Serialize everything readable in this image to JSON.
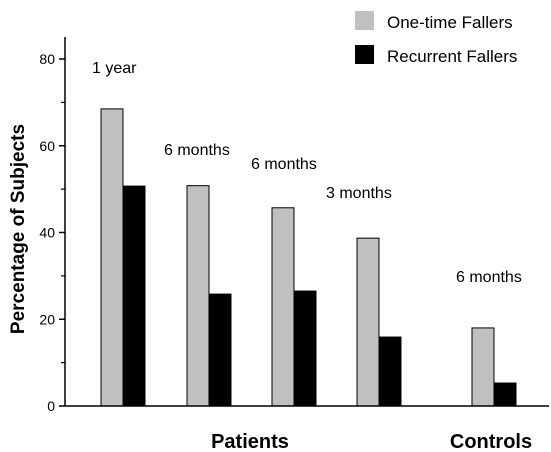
{
  "chart_data": {
    "type": "bar",
    "ylabel": "Percentage of Subjects",
    "ylim": [
      0,
      80
    ],
    "yticks": [
      "0",
      "20",
      "40",
      "60",
      "80"
    ],
    "colors": {
      "One-time Fallers": "#c0c0c0",
      "Recurrent Fallers": "#000000"
    },
    "series": [
      {
        "name": "One-time Fallers",
        "values": [
          68.5,
          50.8,
          45.7,
          38.7,
          18.0
        ]
      },
      {
        "name": "Recurrent Fallers",
        "values": [
          50.7,
          25.8,
          26.5,
          15.9,
          5.3
        ]
      }
    ],
    "annotations": [
      "1 year",
      "6 months",
      "6 months",
      "3 months",
      "6 months"
    ],
    "groups": [
      "Patients",
      "Controls"
    ],
    "legend_position": "top-right",
    "grid": false
  }
}
